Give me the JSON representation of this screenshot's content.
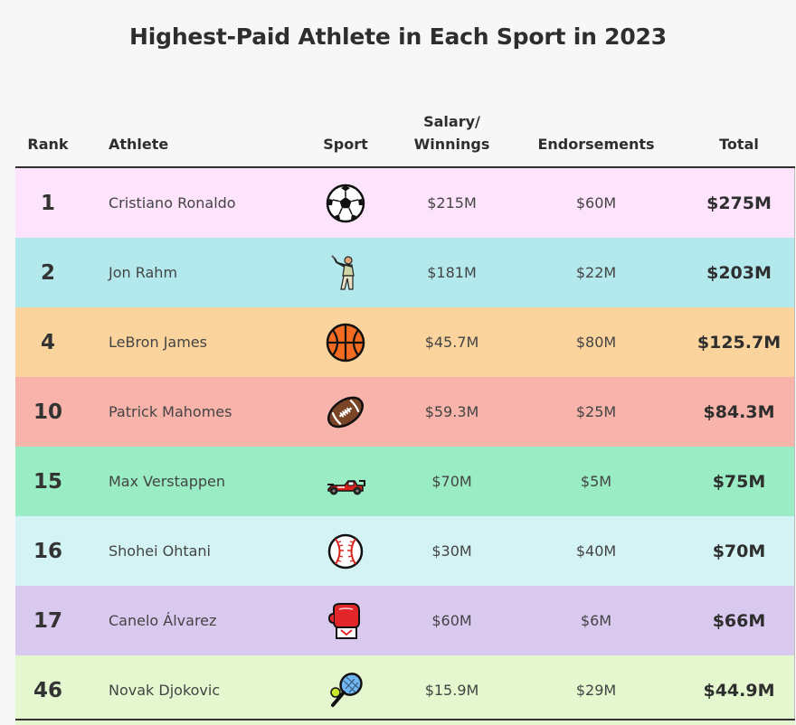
{
  "chart_data": {
    "type": "table",
    "title": "Highest-Paid Athlete in Each Sport in 2023",
    "columns": {
      "rank": "Rank",
      "athlete": "Athlete",
      "sport": "Sport",
      "salary_line1": "Salary/",
      "salary_line2": "Winnings",
      "endorsements": "Endorsements",
      "total": "Total"
    },
    "rows": [
      {
        "rank": "1",
        "athlete": "Cristiano Ronaldo",
        "sport_icon": "soccer-ball-icon",
        "salary": "$215M",
        "endorsements": "$60M",
        "total": "$275M",
        "color": "#fde3fb"
      },
      {
        "rank": "2",
        "athlete": "Jon Rahm",
        "sport_icon": "golfer-icon",
        "salary": "$181M",
        "endorsements": "$22M",
        "total": "$203M",
        "color": "#b3e8ec"
      },
      {
        "rank": "4",
        "athlete": "LeBron James",
        "sport_icon": "basketball-icon",
        "salary": "$45.7M",
        "endorsements": "$80M",
        "total": "$125.7M",
        "color": "#fbd39d"
      },
      {
        "rank": "10",
        "athlete": "Patrick Mahomes",
        "sport_icon": "american-football-icon",
        "salary": "$59.3M",
        "endorsements": "$25M",
        "total": "$84.3M",
        "color": "#f8b4aa"
      },
      {
        "rank": "15",
        "athlete": "Max Verstappen",
        "sport_icon": "racing-car-icon",
        "salary": "$70M",
        "endorsements": "$5M",
        "total": "$75M",
        "color": "#99ecc3"
      },
      {
        "rank": "16",
        "athlete": "Shohei Ohtani",
        "sport_icon": "baseball-icon",
        "salary": "$30M",
        "endorsements": "$40M",
        "total": "$70M",
        "color": "#d3f3f4"
      },
      {
        "rank": "17",
        "athlete": "Canelo Álvarez",
        "sport_icon": "boxing-glove-icon",
        "salary": "$60M",
        "endorsements": "$6M",
        "total": "$66M",
        "color": "#d9c9ee"
      },
      {
        "rank": "46",
        "athlete": "Novak Djokovic",
        "sport_icon": "tennis-icon",
        "salary": "$15.9M",
        "endorsements": "$29M",
        "total": "$44.9M",
        "color": "#e4f7cf"
      }
    ]
  }
}
